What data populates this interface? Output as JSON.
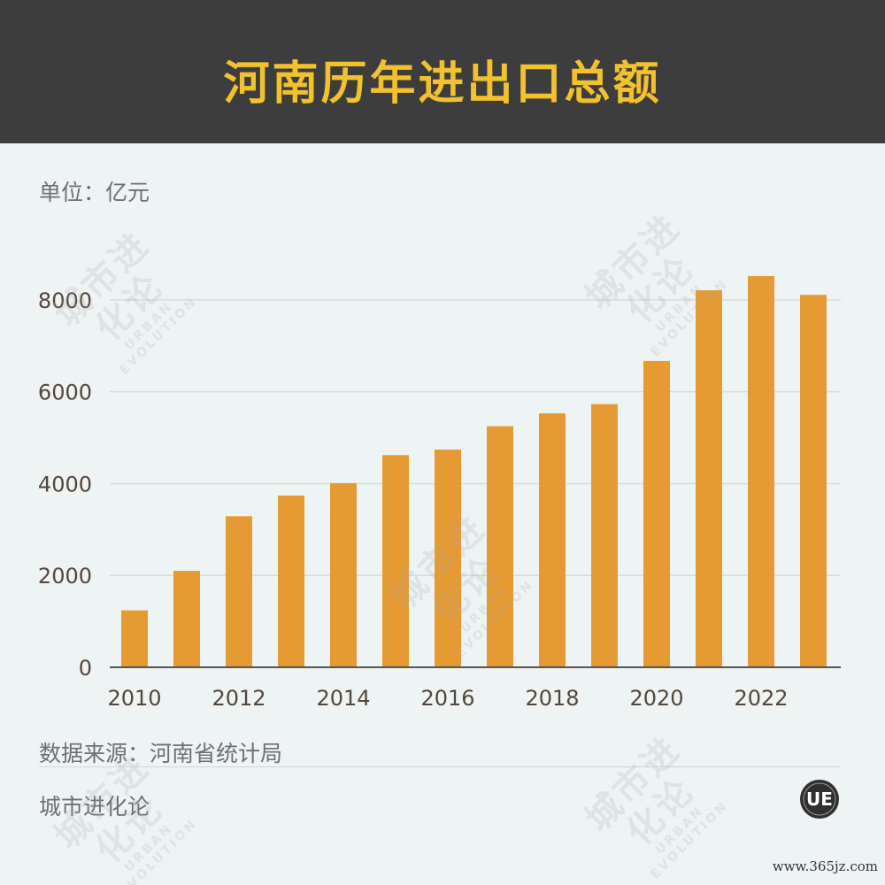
{
  "header": {
    "title": "河南历年进出口总额"
  },
  "unit_label": "单位：亿元",
  "source_label": "数据来源：河南省统计局",
  "brand_label": "城市进化论",
  "logo": {
    "text": "UE"
  },
  "site_url": "www.365jz.com",
  "watermark": {
    "cn": "城市进化论",
    "en": "URBAN EVOLUTION"
  },
  "colors": {
    "header_bg": "#3d3d3d",
    "title": "#f2c12e",
    "bar": "#e59a34",
    "background": "#eef4f4",
    "grid": "#d6dcdc",
    "axis": "#555555"
  },
  "chart_data": {
    "type": "bar",
    "title": "河南历年进出口总额",
    "ylabel": "单位：亿元",
    "xlabel": "",
    "categories": [
      "2010",
      "2011",
      "2012",
      "2013",
      "2014",
      "2015",
      "2016",
      "2017",
      "2018",
      "2019",
      "2020",
      "2021",
      "2022",
      "2023"
    ],
    "x_tick_labels": [
      "2010",
      "2012",
      "2014",
      "2016",
      "2018",
      "2020",
      "2022"
    ],
    "values": [
      1240,
      2100,
      3290,
      3740,
      4010,
      4620,
      4740,
      5250,
      5530,
      5730,
      6670,
      8210,
      8520,
      8110
    ],
    "y_ticks": [
      0,
      2000,
      4000,
      6000,
      8000
    ],
    "ylim": [
      0,
      9000
    ],
    "grid": true,
    "legend": "none"
  }
}
